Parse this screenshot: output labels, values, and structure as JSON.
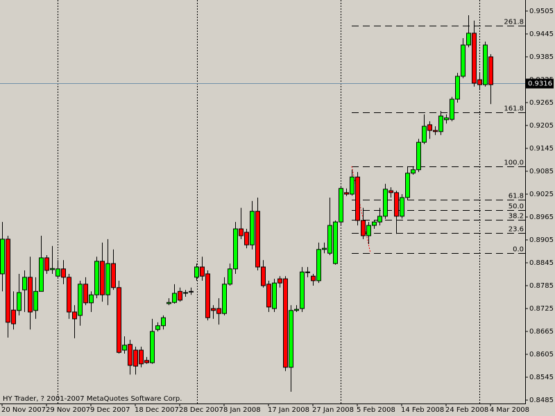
{
  "chart_data": {
    "type": "candlestick",
    "categories": [
      "20 Nov 2007",
      null,
      null,
      null,
      null,
      null,
      null,
      null,
      "29 Nov 2007",
      null,
      null,
      null,
      null,
      null,
      null,
      null,
      "9 Dec 2007",
      null,
      null,
      null,
      null,
      null,
      null,
      null,
      "18 Dec 2007",
      null,
      null,
      null,
      null,
      null,
      null,
      null,
      "28 Dec 2007",
      null,
      null,
      null,
      null,
      null,
      null,
      null,
      "8 Jan 2008",
      null,
      null,
      null,
      null,
      null,
      null,
      null,
      "17 Jan 2008",
      null,
      null,
      null,
      null,
      null,
      null,
      null,
      "27 Jan 2008",
      null,
      null,
      null,
      null,
      null,
      null,
      null,
      "5 Feb 2008",
      null,
      null,
      null,
      null,
      null,
      null,
      null,
      "14 Feb 2008",
      null,
      null,
      null,
      null,
      null,
      null,
      null,
      "24 Feb 2008",
      null,
      null,
      null,
      null,
      null,
      null,
      null,
      "4 Mar 2008"
    ],
    "open": [
      0.8816,
      0.8907,
      0.8721,
      0.872,
      0.8774,
      0.8807,
      0.872,
      0.877,
      0.8858,
      0.8827,
      0.881,
      0.8829,
      0.8807,
      0.8716,
      0.8707,
      0.8789,
      0.874,
      0.8761,
      0.8849,
      0.8761,
      0.8843,
      0.878,
      0.8616,
      0.8631,
      0.8616,
      0.8616,
      0.8589,
      0.8583,
      0.867,
      0.868,
      0.8738,
      0.8741,
      0.877,
      0.8765,
      0.8769,
      0.8807,
      0.8834,
      0.8816,
      0.8725,
      0.8725,
      0.8712,
      0.8789,
      0.8829,
      0.8934,
      0.8925,
      0.8892,
      0.898,
      0.8834,
      0.8789,
      0.8725,
      0.8803,
      0.8803,
      0.8571,
      0.872,
      0.8725,
      0.882,
      0.881,
      0.8798,
      0.888,
      0.887,
      0.8843,
      0.8952,
      0.9029,
      0.9025,
      0.907,
      0.8956,
      0.8916,
      0.8943,
      0.8952,
      0.8967,
      0.9034,
      0.9029,
      0.8967,
      0.9016,
      0.908,
      0.9089,
      0.9161,
      0.9207,
      0.9192,
      0.9189,
      0.922,
      0.9221,
      0.9274,
      0.9334,
      0.9416,
      0.9447,
      0.9325,
      0.9312,
      0.9385
    ],
    "high": [
      0.8952,
      0.8916,
      0.877,
      0.8816,
      0.8825,
      0.8861,
      0.8807,
      0.8916,
      0.8865,
      0.8889,
      0.8852,
      0.8852,
      0.8816,
      0.8734,
      0.8798,
      0.8807,
      0.877,
      0.8861,
      0.8898,
      0.8907,
      0.888,
      0.8798,
      0.8652,
      0.8643,
      0.8625,
      0.8625,
      0.8598,
      0.8698,
      0.8689,
      0.8707,
      0.8752,
      0.8789,
      0.878,
      0.8774,
      0.878,
      0.8843,
      0.8861,
      0.8825,
      0.8734,
      0.8752,
      0.8807,
      0.8843,
      0.8952,
      0.8989,
      0.8934,
      0.9007,
      0.9016,
      0.8852,
      0.8798,
      0.8803,
      0.881,
      0.881,
      0.8734,
      0.8734,
      0.8834,
      0.8834,
      0.8816,
      0.8898,
      0.8898,
      0.9016,
      0.8956,
      0.9047,
      0.904,
      0.9089,
      0.9083,
      0.8989,
      0.8952,
      0.8956,
      0.8989,
      0.9052,
      0.9043,
      0.9034,
      0.9025,
      0.9098,
      0.9098,
      0.917,
      0.9234,
      0.9216,
      0.9203,
      0.9243,
      0.9234,
      0.928,
      0.9343,
      0.9434,
      0.9494,
      0.948,
      0.9343,
      0.9425,
      0.9392
    ],
    "low": [
      0.877,
      0.8649,
      0.867,
      0.8707,
      0.8716,
      0.867,
      0.8698,
      0.877,
      0.8816,
      0.8816,
      0.8807,
      0.8789,
      0.8698,
      0.8647,
      0.868,
      0.8734,
      0.8716,
      0.8752,
      0.8743,
      0.8734,
      0.8774,
      0.8607,
      0.8607,
      0.8552,
      0.8552,
      0.8571,
      0.858,
      0.858,
      0.8665,
      0.867,
      0.8734,
      0.8738,
      0.8743,
      0.8756,
      0.8761,
      0.8798,
      0.8798,
      0.8694,
      0.8698,
      0.8683,
      0.8707,
      0.8785,
      0.8816,
      0.8907,
      0.8883,
      0.888,
      0.8825,
      0.878,
      0.8716,
      0.8716,
      0.878,
      0.8561,
      0.8507,
      0.8716,
      0.8716,
      0.8807,
      0.8785,
      0.8792,
      0.887,
      0.8865,
      0.884,
      0.8943,
      0.902,
      0.9021,
      0.8943,
      0.8907,
      0.8894,
      0.8934,
      0.8943,
      0.896,
      0.9016,
      0.8921,
      0.8961,
      0.901,
      0.9076,
      0.9083,
      0.9156,
      0.917,
      0.918,
      0.918,
      0.921,
      0.9216,
      0.9265,
      0.9329,
      0.941,
      0.9307,
      0.9298,
      0.9307,
      0.9261
    ],
    "close": [
      0.8907,
      0.8689,
      0.8685,
      0.8767,
      0.8807,
      0.8716,
      0.877,
      0.8858,
      0.8825,
      0.883,
      0.8829,
      0.8807,
      0.8716,
      0.8698,
      0.8789,
      0.874,
      0.8761,
      0.8849,
      0.8761,
      0.8843,
      0.878,
      0.861,
      0.8629,
      0.8576,
      0.8574,
      0.858,
      0.8583,
      0.8665,
      0.868,
      0.8701,
      0.8741,
      0.8765,
      0.8747,
      0.8767,
      0.877,
      0.8834,
      0.881,
      0.8701,
      0.872,
      0.8712,
      0.8789,
      0.8829,
      0.8934,
      0.8916,
      0.8892,
      0.898,
      0.8834,
      0.8785,
      0.8729,
      0.8792,
      0.8792,
      0.8571,
      0.872,
      0.8723,
      0.8821,
      0.8821,
      0.8798,
      0.888,
      0.8883,
      0.8943,
      0.8952,
      0.904,
      0.9025,
      0.907,
      0.8956,
      0.8916,
      0.8943,
      0.8952,
      0.8967,
      0.9038,
      0.9029,
      0.8967,
      0.9016,
      0.908,
      0.9089,
      0.9161,
      0.9203,
      0.9192,
      0.9189,
      0.923,
      0.9225,
      0.9274,
      0.9334,
      0.9416,
      0.9447,
      0.9316,
      0.9312,
      0.9416,
      0.9312
    ],
    "up_color": "#00ff00",
    "down_color": "#ff0000",
    "ylim": [
      0.8476,
      0.9534
    ],
    "yticks": [
      0.9505,
      0.9445,
      0.9385,
      0.9325,
      0.9265,
      0.9205,
      0.9145,
      0.9085,
      0.9025,
      0.8965,
      0.8905,
      0.8845,
      0.8785,
      0.8725,
      0.8665,
      0.8605,
      0.8545,
      0.8485
    ],
    "bid": 0.9316,
    "bid_color": "#7090a8",
    "fibonacci": [
      {
        "value": 0.9467,
        "label": "261.8"
      },
      {
        "value": 0.9239,
        "label": "161.8"
      },
      {
        "value": 0.9098,
        "label": "100.0"
      },
      {
        "value": 0.9011,
        "label": "61.8"
      },
      {
        "value": 0.8984,
        "label": "50.0"
      },
      {
        "value": 0.8957,
        "label": "38.2"
      },
      {
        "value": 0.8924,
        "label": "23.6"
      },
      {
        "value": 0.887,
        "label": "0.0"
      }
    ],
    "footer": "HY Trader, ? 2001-2007 MetaQuotes Software Corp."
  }
}
